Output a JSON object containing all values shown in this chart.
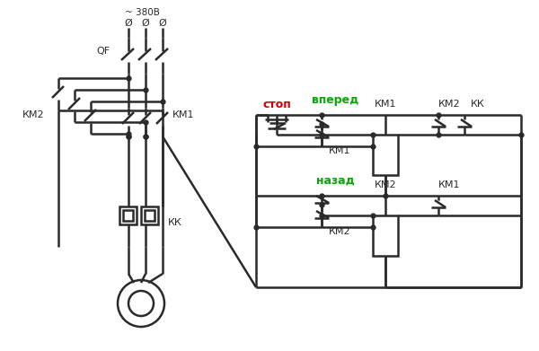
{
  "bg_color": "#ffffff",
  "line_color": "#2a2a2a",
  "red_color": "#cc0000",
  "green_color": "#00aa00",
  "lw": 1.6,
  "label_380": "~ 380В",
  "label_QF": "QF",
  "label_KM1_power": "КМ1",
  "label_KM2_power": "КМ2",
  "label_KK": "КК",
  "label_stop": "стоп",
  "label_forward": "вперед",
  "label_back": "назад",
  "label_KM1_ctrl": "КМ1",
  "label_KM2_ctrl": "КМ2",
  "label_KM1_top": "КМ1",
  "label_KM2_top": "КМ2",
  "label_KK_top": "КК",
  "label_KM1_bot": "КМ1",
  "label_KM2_bot": "КМ2",
  "label_KM1_hold": "КМ1",
  "label_KM2_hold": "КМ2"
}
